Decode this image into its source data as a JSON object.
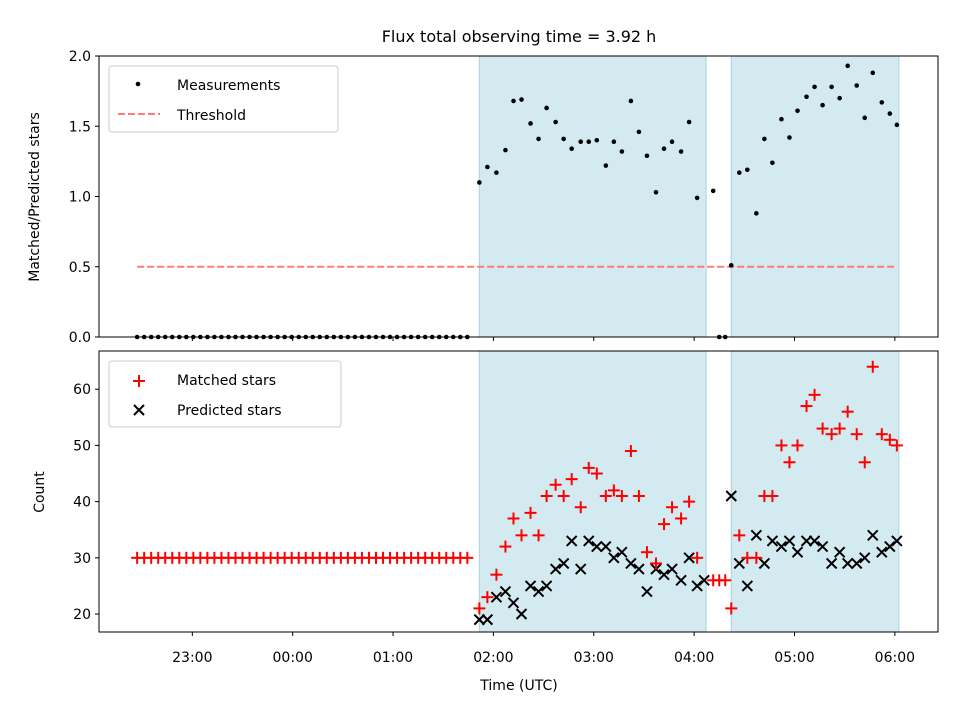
{
  "chart_data": [
    {
      "type": "scatter",
      "title": "Flux total observing time = 3.92 h",
      "ylabel": "Matched/Predicted stars",
      "xlabel": "",
      "ylim": [
        0,
        2.0
      ],
      "yticks": [
        0.0,
        0.5,
        1.0,
        1.5,
        2.0
      ],
      "ytick_labels": [
        "0.0",
        "0.5",
        "1.0",
        "1.5",
        "2.0"
      ],
      "xlim_hours": [
        -1.93,
        6.43
      ],
      "legend": {
        "position": "top-left",
        "entries": [
          {
            "label": "Measurements",
            "marker": "dot",
            "color": "#000000"
          },
          {
            "label": "Threshold",
            "marker": "dashed-line",
            "color": "#ff7b7b"
          }
        ]
      },
      "threshold": {
        "value": 0.5,
        "x_range_hours": [
          -1.55,
          6.02
        ],
        "color": "#ff7b7b"
      },
      "observing_windows_hours": [
        [
          1.86,
          4.12
        ],
        [
          4.37,
          6.04
        ]
      ],
      "window_color": "#d4eaf1",
      "series": [
        {
          "name": "Measurements",
          "x_hours": [
            -1.55,
            -1.48,
            -1.41,
            -1.34,
            -1.27,
            -1.2,
            -1.13,
            -1.06,
            -0.99,
            -0.92,
            -0.85,
            -0.78,
            -0.71,
            -0.64,
            -0.57,
            -0.5,
            -0.43,
            -0.36,
            -0.29,
            -0.22,
            -0.15,
            -0.08,
            -0.01,
            0.06,
            0.13,
            0.2,
            0.27,
            0.34,
            0.41,
            0.48,
            0.55,
            0.62,
            0.69,
            0.76,
            0.83,
            0.9,
            0.97,
            1.04,
            1.11,
            1.18,
            1.25,
            1.32,
            1.39,
            1.46,
            1.53,
            1.6,
            1.67,
            1.74,
            1.86,
            1.94,
            2.03,
            2.12,
            2.2,
            2.28,
            2.37,
            2.45,
            2.53,
            2.62,
            2.7,
            2.78,
            2.87,
            2.95,
            3.03,
            3.12,
            3.2,
            3.28,
            3.37,
            3.45,
            3.53,
            3.62,
            3.7,
            3.78,
            3.87,
            3.95,
            4.03,
            4.19,
            4.25,
            4.31,
            4.37,
            4.45,
            4.53,
            4.62,
            4.7,
            4.78,
            4.87,
            4.95,
            5.03,
            5.12,
            5.2,
            5.28,
            5.37,
            5.45,
            5.53,
            5.62,
            5.7,
            5.78,
            5.87,
            5.95,
            6.02
          ],
          "y": [
            0,
            0,
            0,
            0,
            0,
            0,
            0,
            0,
            0,
            0,
            0,
            0,
            0,
            0,
            0,
            0,
            0,
            0,
            0,
            0,
            0,
            0,
            0,
            0,
            0,
            0,
            0,
            0,
            0,
            0,
            0,
            0,
            0,
            0,
            0,
            0,
            0,
            0,
            0,
            0,
            0,
            0,
            0,
            0,
            0,
            0,
            0,
            0,
            1.1,
            1.21,
            1.17,
            1.33,
            1.68,
            1.69,
            1.52,
            1.41,
            1.63,
            1.53,
            1.41,
            1.34,
            1.39,
            1.39,
            1.4,
            1.22,
            1.39,
            1.32,
            1.68,
            1.46,
            1.29,
            1.03,
            1.34,
            1.39,
            1.32,
            1.53,
            0.99,
            1.04,
            0,
            0,
            0.51,
            1.17,
            1.19,
            0.88,
            1.41,
            1.24,
            1.55,
            1.42,
            1.61,
            1.71,
            1.78,
            1.65,
            1.78,
            1.7,
            1.93,
            1.79,
            1.56,
            1.88,
            1.67,
            1.59,
            1.51
          ]
        }
      ]
    },
    {
      "type": "scatter",
      "title": "",
      "ylabel": "Count",
      "xlabel": "Time (UTC)",
      "ylim": [
        16.8,
        66.8
      ],
      "yticks": [
        20,
        30,
        40,
        50,
        60
      ],
      "ytick_labels": [
        "20",
        "30",
        "40",
        "50",
        "60"
      ],
      "xlim_hours": [
        -1.93,
        6.43
      ],
      "xticks_hours": [
        -1,
        0,
        1,
        2,
        3,
        4,
        5,
        6
      ],
      "xtick_labels": [
        "23:00",
        "00:00",
        "01:00",
        "02:00",
        "03:00",
        "04:00",
        "05:00",
        "06:00"
      ],
      "legend": {
        "position": "top-left",
        "entries": [
          {
            "label": "Matched stars",
            "marker": "plus",
            "color": "#ff0000"
          },
          {
            "label": "Predicted stars",
            "marker": "x",
            "color": "#000000"
          }
        ]
      },
      "observing_windows_hours": [
        [
          1.86,
          4.12
        ],
        [
          4.37,
          6.04
        ]
      ],
      "series": [
        {
          "name": "Matched stars",
          "x_hours": [
            -1.55,
            -1.48,
            -1.41,
            -1.34,
            -1.27,
            -1.2,
            -1.13,
            -1.06,
            -0.99,
            -0.92,
            -0.85,
            -0.78,
            -0.71,
            -0.64,
            -0.57,
            -0.5,
            -0.43,
            -0.36,
            -0.29,
            -0.22,
            -0.15,
            -0.08,
            -0.01,
            0.06,
            0.13,
            0.2,
            0.27,
            0.34,
            0.41,
            0.48,
            0.55,
            0.62,
            0.69,
            0.76,
            0.83,
            0.9,
            0.97,
            1.04,
            1.11,
            1.18,
            1.25,
            1.32,
            1.39,
            1.46,
            1.53,
            1.6,
            1.67,
            1.74,
            1.86,
            1.94,
            2.03,
            2.12,
            2.2,
            2.28,
            2.37,
            2.45,
            2.53,
            2.62,
            2.7,
            2.78,
            2.87,
            2.95,
            3.03,
            3.12,
            3.2,
            3.28,
            3.37,
            3.45,
            3.53,
            3.62,
            3.7,
            3.78,
            3.87,
            3.95,
            4.03,
            4.19,
            4.25,
            4.31,
            4.37,
            4.45,
            4.53,
            4.62,
            4.7,
            4.78,
            4.87,
            4.95,
            5.03,
            5.12,
            5.2,
            5.28,
            5.37,
            5.45,
            5.53,
            5.62,
            5.7,
            5.78,
            5.87,
            5.95,
            6.02
          ],
          "y": [
            30,
            30,
            30,
            30,
            30,
            30,
            30,
            30,
            30,
            30,
            30,
            30,
            30,
            30,
            30,
            30,
            30,
            30,
            30,
            30,
            30,
            30,
            30,
            30,
            30,
            30,
            30,
            30,
            30,
            30,
            30,
            30,
            30,
            30,
            30,
            30,
            30,
            30,
            30,
            30,
            30,
            30,
            30,
            30,
            30,
            30,
            30,
            30,
            21,
            23,
            27,
            32,
            37,
            34,
            38,
            34,
            41,
            43,
            41,
            44,
            39,
            46,
            45,
            41,
            42,
            41,
            49,
            41,
            31,
            29,
            36,
            39,
            37,
            40,
            30,
            26,
            26,
            26,
            21,
            34,
            30,
            30,
            41,
            41,
            50,
            47,
            50,
            57,
            59,
            53,
            52,
            53,
            56,
            52,
            47,
            64,
            52,
            51,
            50
          ]
        },
        {
          "name": "Predicted stars",
          "x_hours": [
            1.86,
            1.94,
            2.03,
            2.12,
            2.2,
            2.28,
            2.37,
            2.45,
            2.53,
            2.62,
            2.7,
            2.78,
            2.87,
            2.95,
            3.03,
            3.12,
            3.2,
            3.28,
            3.37,
            3.45,
            3.53,
            3.62,
            3.7,
            3.78,
            3.87,
            3.95,
            4.03,
            4.1,
            4.37,
            4.45,
            4.53,
            4.62,
            4.7,
            4.78,
            4.87,
            4.95,
            5.03,
            5.12,
            5.2,
            5.28,
            5.37,
            5.45,
            5.53,
            5.62,
            5.7,
            5.78,
            5.87,
            5.95,
            6.02
          ],
          "y": [
            19,
            19,
            23,
            24,
            22,
            20,
            25,
            24,
            25,
            28,
            29,
            33,
            28,
            33,
            32,
            32,
            30,
            31,
            29,
            28,
            24,
            28,
            27,
            28,
            26,
            30,
            25,
            26,
            41,
            29,
            25,
            34,
            29,
            33,
            32,
            33,
            31,
            33,
            33,
            32,
            29,
            31,
            29,
            29,
            30,
            34,
            31,
            32,
            33
          ]
        }
      ]
    }
  ]
}
